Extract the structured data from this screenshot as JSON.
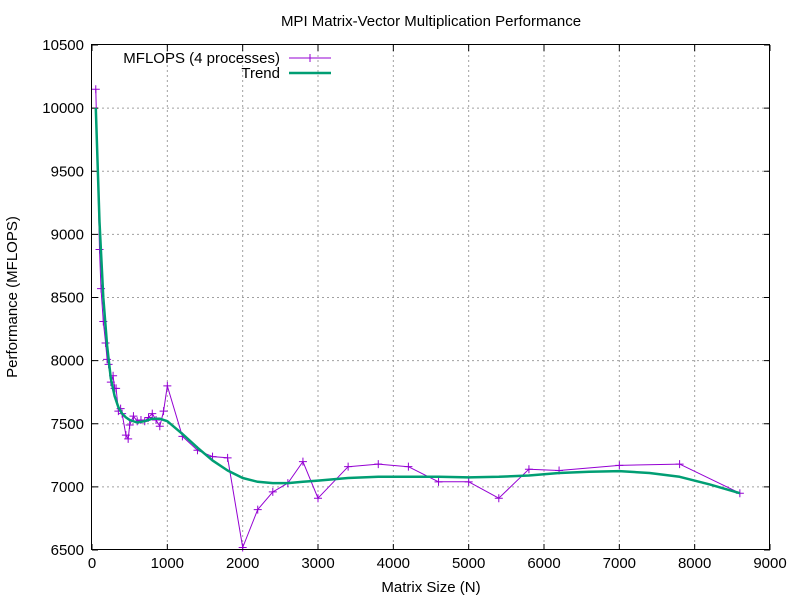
{
  "chart_data": {
    "type": "line",
    "title": "MPI Matrix-Vector Multiplication Performance",
    "xlabel": "Matrix Size (N)",
    "ylabel": "Performance (MFLOPS)",
    "xlim": [
      0,
      9000
    ],
    "ylim": [
      6500,
      10500
    ],
    "xticks": [
      0,
      1000,
      2000,
      3000,
      4000,
      5000,
      6000,
      7000,
      8000,
      9000
    ],
    "yticks": [
      6500,
      7000,
      7500,
      8000,
      8500,
      9000,
      9500,
      10000,
      10500
    ],
    "grid": true,
    "legend_position": "top-left",
    "series": [
      {
        "name": "MFLOPS (4 processes)",
        "color": "#9400d3",
        "marker": "plus",
        "x": [
          50,
          100,
          120,
          150,
          180,
          200,
          220,
          250,
          280,
          300,
          320,
          350,
          380,
          400,
          450,
          480,
          500,
          550,
          600,
          650,
          700,
          750,
          800,
          850,
          900,
          950,
          1000,
          1200,
          1400,
          1600,
          1800,
          2000,
          2200,
          2400,
          2600,
          2800,
          3000,
          3400,
          3800,
          4200,
          4600,
          5000,
          5400,
          5800,
          6200,
          7000,
          7800,
          8600
        ],
        "y": [
          10150,
          8880,
          8570,
          8310,
          8140,
          8010,
          7970,
          7830,
          7880,
          7780,
          7780,
          7600,
          7620,
          7580,
          7410,
          7380,
          7490,
          7560,
          7520,
          7530,
          7520,
          7550,
          7580,
          7530,
          7480,
          7600,
          7800,
          7400,
          7290,
          7240,
          7230,
          6520,
          6820,
          6960,
          7030,
          7200,
          6910,
          7160,
          7180,
          7160,
          7040,
          7040,
          6910,
          7140,
          7130,
          7170,
          7180,
          6950
        ]
      },
      {
        "name": "Trend",
        "color": "#009e73",
        "marker": "none",
        "x": [
          50,
          100,
          150,
          200,
          250,
          300,
          350,
          400,
          450,
          500,
          600,
          700,
          800,
          900,
          1000,
          1200,
          1400,
          1600,
          1800,
          2000,
          2200,
          2400,
          2600,
          2800,
          3000,
          3400,
          3800,
          4200,
          4600,
          5000,
          5400,
          5800,
          6200,
          6600,
          7000,
          7400,
          7800,
          8200,
          8600
        ],
        "y": [
          10000,
          9100,
          8500,
          8120,
          7860,
          7720,
          7630,
          7580,
          7550,
          7530,
          7510,
          7520,
          7540,
          7540,
          7520,
          7420,
          7310,
          7210,
          7130,
          7070,
          7040,
          7030,
          7030,
          7040,
          7050,
          7070,
          7080,
          7080,
          7080,
          7075,
          7080,
          7090,
          7110,
          7120,
          7125,
          7110,
          7080,
          7020,
          6950
        ]
      }
    ]
  }
}
